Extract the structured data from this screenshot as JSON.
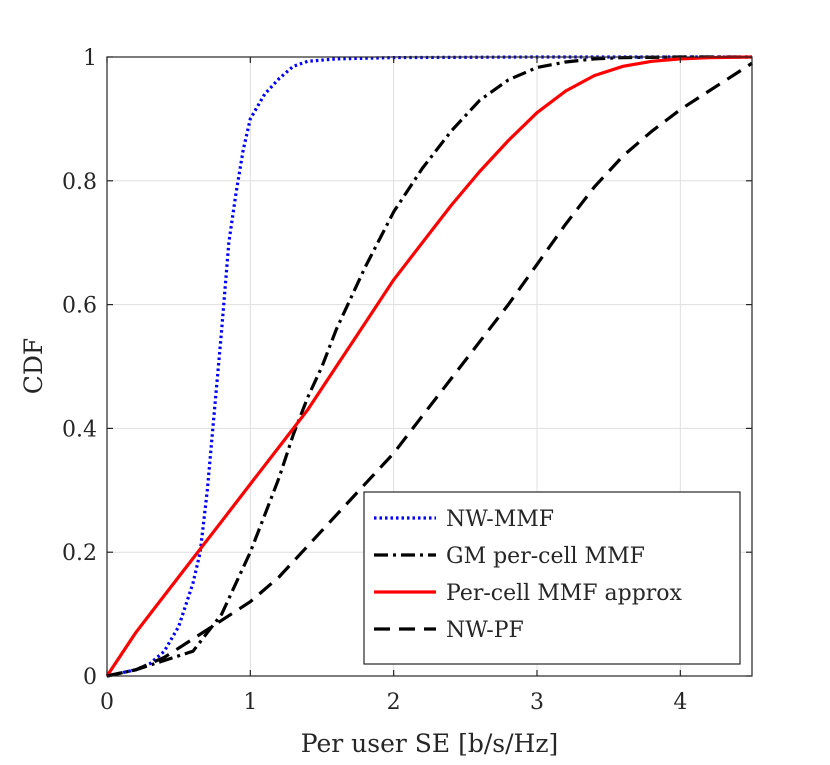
{
  "chart_data": {
    "type": "line",
    "title": "",
    "xlabel": "Per user SE [b/s/Hz]",
    "ylabel": "CDF",
    "xlim": [
      0,
      4.5
    ],
    "ylim": [
      0,
      1
    ],
    "xticks": [
      0,
      1,
      2,
      3,
      4
    ],
    "yticks": [
      0,
      0.2,
      0.4,
      0.6,
      0.8,
      1
    ],
    "xtick_labels": [
      "0",
      "1",
      "2",
      "3",
      "4"
    ],
    "ytick_labels": [
      "0",
      "0.2",
      "0.4",
      "0.6",
      "0.8",
      "1"
    ],
    "grid": true,
    "legend_position": "bottom-right",
    "series": [
      {
        "name": "NW-MMF",
        "color": "#0000ff",
        "style": "dotted",
        "x": [
          0,
          0.2,
          0.3,
          0.4,
          0.5,
          0.6,
          0.65,
          0.7,
          0.75,
          0.8,
          0.85,
          0.9,
          0.95,
          1.0,
          1.05,
          1.1,
          1.2,
          1.3,
          1.4,
          1.6,
          2.0,
          3.0,
          4.5
        ],
        "y": [
          0,
          0.01,
          0.02,
          0.04,
          0.08,
          0.15,
          0.2,
          0.3,
          0.43,
          0.56,
          0.7,
          0.78,
          0.85,
          0.9,
          0.92,
          0.94,
          0.965,
          0.985,
          0.993,
          0.997,
          0.999,
          1.0,
          1.0
        ]
      },
      {
        "name": "GM per-cell MMF",
        "color": "#000000",
        "style": "dashdot",
        "x": [
          0,
          0.2,
          0.4,
          0.6,
          0.7,
          0.8,
          0.9,
          1.0,
          1.1,
          1.2,
          1.3,
          1.4,
          1.5,
          1.6,
          1.8,
          2.0,
          2.2,
          2.4,
          2.6,
          2.8,
          3.0,
          3.2,
          3.4,
          3.6,
          4.0,
          4.5
        ],
        "y": [
          0,
          0.01,
          0.025,
          0.04,
          0.07,
          0.1,
          0.15,
          0.2,
          0.26,
          0.32,
          0.39,
          0.45,
          0.5,
          0.56,
          0.66,
          0.75,
          0.82,
          0.88,
          0.93,
          0.963,
          0.983,
          0.992,
          0.997,
          0.999,
          1.0,
          1.0
        ]
      },
      {
        "name": "Per-cell MMF approx",
        "color": "#ff0000",
        "style": "solid",
        "x": [
          0,
          0.2,
          0.4,
          0.6,
          0.8,
          1.0,
          1.2,
          1.4,
          1.6,
          1.8,
          2.0,
          2.2,
          2.4,
          2.6,
          2.8,
          3.0,
          3.2,
          3.4,
          3.6,
          3.8,
          4.0,
          4.2,
          4.5
        ],
        "y": [
          0,
          0.07,
          0.13,
          0.19,
          0.25,
          0.31,
          0.37,
          0.43,
          0.5,
          0.57,
          0.64,
          0.7,
          0.76,
          0.815,
          0.865,
          0.91,
          0.945,
          0.97,
          0.985,
          0.993,
          0.997,
          0.999,
          1.0
        ]
      },
      {
        "name": "NW-PF",
        "color": "#000000",
        "style": "dashed",
        "x": [
          0,
          0.2,
          0.4,
          0.6,
          0.8,
          1.0,
          1.2,
          1.4,
          1.6,
          1.8,
          2.0,
          2.2,
          2.4,
          2.6,
          2.8,
          3.0,
          3.2,
          3.4,
          3.6,
          3.8,
          4.0,
          4.2,
          4.4,
          4.5
        ],
        "y": [
          0,
          0.01,
          0.03,
          0.06,
          0.09,
          0.12,
          0.16,
          0.21,
          0.26,
          0.31,
          0.36,
          0.42,
          0.48,
          0.54,
          0.6,
          0.665,
          0.73,
          0.79,
          0.84,
          0.88,
          0.915,
          0.945,
          0.975,
          0.99
        ]
      }
    ]
  }
}
